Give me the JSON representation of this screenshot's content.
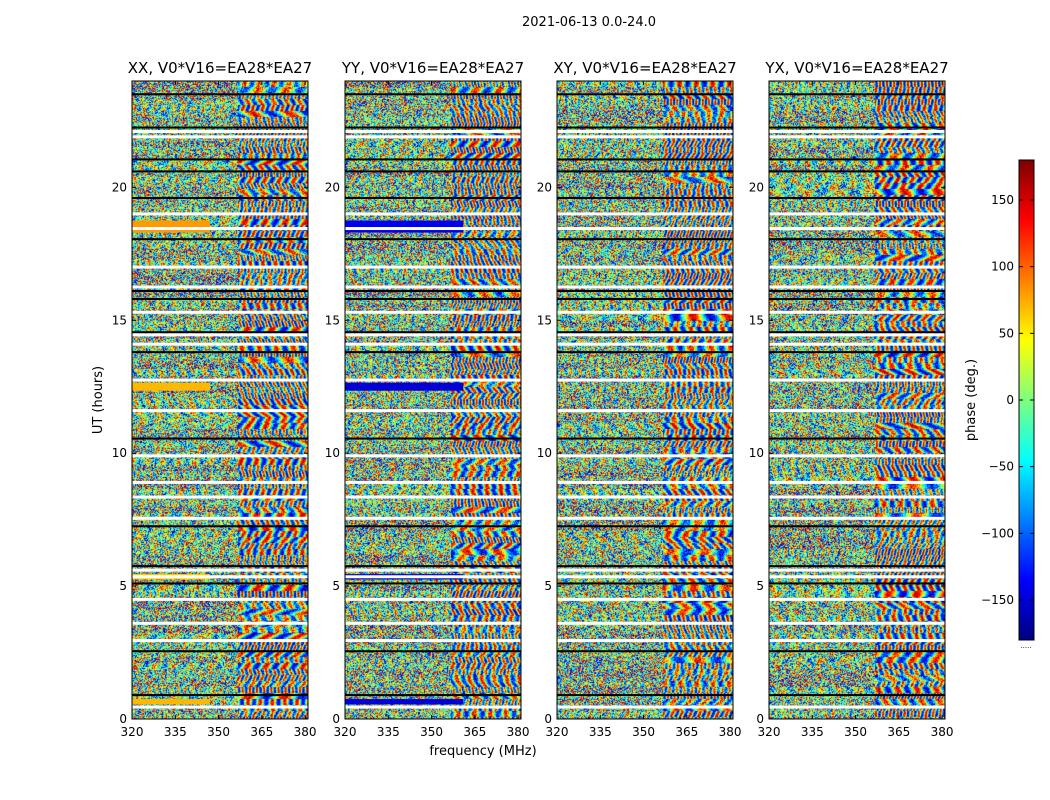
{
  "figure": {
    "suptitle": "2021-06-13 0.0-24.0",
    "xlabel": "frequency (MHz)",
    "ylabel": "UT (hours)"
  },
  "chart_data": {
    "type": "heatmap",
    "xlim": [
      320,
      381
    ],
    "ylim": [
      0,
      24
    ],
    "xticks": [
      320,
      335,
      350,
      365,
      380
    ],
    "yticks": [
      0,
      5,
      10,
      15,
      20
    ],
    "colorbar": {
      "label": "phase (deg.)",
      "vmin": -180,
      "vmax": 180,
      "ticks": [
        150,
        100,
        50,
        0,
        -50,
        -100,
        -150
      ],
      "tick_labels": [
        "150",
        "100",
        "50",
        "0",
        "−50",
        "−100",
        "−150"
      ],
      "colormap": [
        "#00007f",
        "#0000ff",
        "#007fff",
        "#00ffff",
        "#7fff7f",
        "#ffff00",
        "#ff7f00",
        "#ff0000",
        "#7f0000"
      ],
      "extra_label": "....."
    },
    "blank_rows_hours": [
      0.45,
      2.95,
      3.6,
      4.5,
      5.35,
      5.6,
      7.55,
      8.35,
      8.9,
      9.9,
      11.6,
      12.75,
      14.1,
      14.45,
      15.3,
      16.25,
      17.0,
      18.45,
      19.0,
      21.9,
      22.1
    ],
    "dark_rows_hours": [
      0.9,
      2.55,
      5.1,
      5.75,
      7.25,
      10.55,
      13.8,
      14.55,
      15.8,
      16.1,
      18.05,
      19.6,
      20.6,
      21.05,
      22.25,
      23.5
    ],
    "panels": [
      {
        "title": "XX, V0*V16=EA28*EA27",
        "features": [
          {
            "t0": 0.55,
            "t1": 0.75,
            "f1": 347,
            "phase": 70
          },
          {
            "t0": 12.35,
            "t1": 12.65,
            "f1": 347,
            "phase": 70
          },
          {
            "t0": 18.3,
            "t1": 18.75,
            "f1": 347,
            "phase": 80
          },
          {
            "t0": 5.25,
            "t1": 5.45,
            "f1": 347,
            "phase": 60
          }
        ]
      },
      {
        "title": "YY, V0*V16=EA28*EA27",
        "features": [
          {
            "t0": 0.55,
            "t1": 0.75,
            "f1": 361,
            "phase": -150
          },
          {
            "t0": 12.35,
            "t1": 12.65,
            "f1": 361,
            "phase": -150
          },
          {
            "t0": 18.3,
            "t1": 18.75,
            "f1": 361,
            "phase": -140
          },
          {
            "t0": 5.25,
            "t1": 5.45,
            "f1": 361,
            "phase": -150
          }
        ]
      },
      {
        "title": "XY, V0*V16=EA28*EA27",
        "features": []
      },
      {
        "title": "YX, V0*V16=EA28*EA27",
        "features": []
      }
    ]
  }
}
